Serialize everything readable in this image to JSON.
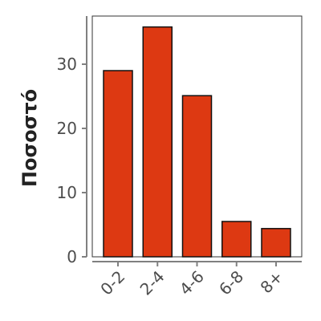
{
  "chart_data": {
    "type": "bar",
    "y_label": "Ποσοστό",
    "categories": [
      "0-2",
      "2-4",
      "4-6",
      "6-8",
      "8+"
    ],
    "values": [
      29,
      35.8,
      25.1,
      5.5,
      4.4
    ],
    "color": "#dd3912",
    "ylim": [
      0,
      37.5
    ],
    "yticks": [
      0,
      10,
      20,
      30
    ],
    "grid": false
  }
}
